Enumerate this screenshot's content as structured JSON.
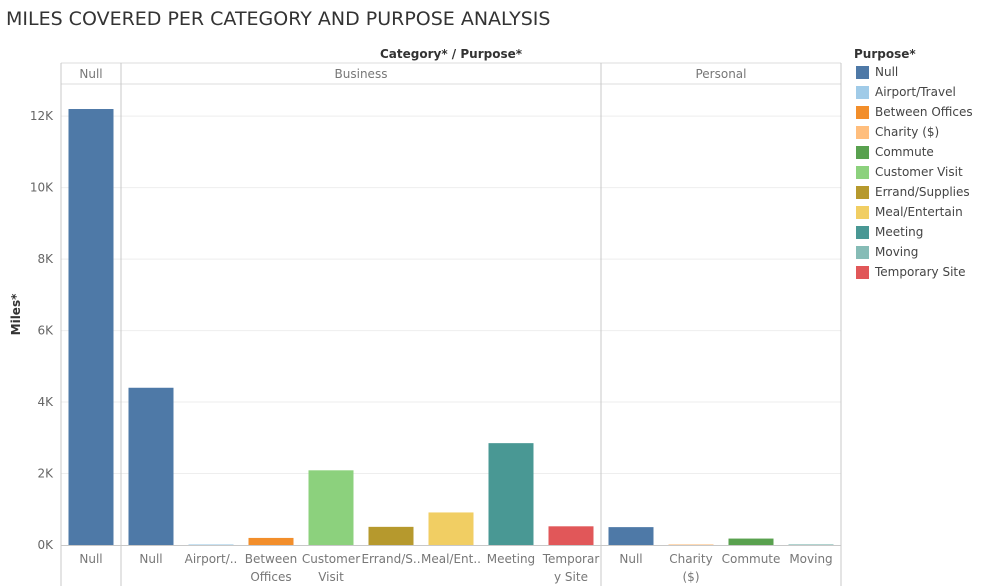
{
  "title": "MILES COVERED PER CATEGORY AND PURPOSE ANALYSIS",
  "legend": {
    "title": "Purpose*",
    "items": [
      {
        "label": "Null",
        "color": "#4e79a7"
      },
      {
        "label": "Airport/Travel",
        "color": "#a0cbe8"
      },
      {
        "label": "Between Offices",
        "color": "#f28e2b"
      },
      {
        "label": "Charity ($)",
        "color": "#ffbe7d"
      },
      {
        "label": "Commute",
        "color": "#59a14f"
      },
      {
        "label": "Customer Visit",
        "color": "#8cd17d"
      },
      {
        "label": "Errand/Supplies",
        "color": "#b6992d"
      },
      {
        "label": "Meal/Entertain",
        "color": "#f1ce63"
      },
      {
        "label": "Meeting",
        "color": "#499894"
      },
      {
        "label": "Moving",
        "color": "#86bcb6"
      },
      {
        "label": "Temporary Site",
        "color": "#e15759"
      }
    ]
  },
  "chart_data": {
    "type": "bar",
    "column_header": "Category* / Purpose*",
    "ylabel": "Miles*",
    "ylim": [
      0,
      12900
    ],
    "yticks": [
      0,
      2000,
      4000,
      6000,
      8000,
      10000,
      12000
    ],
    "ytick_labels": [
      "0K",
      "2K",
      "4K",
      "6K",
      "8K",
      "10K",
      "12K"
    ],
    "grid": true,
    "legend_position": "right",
    "panels": [
      {
        "category": "Null",
        "bars": [
          {
            "purpose": "Null",
            "label_lines": [
              "Null"
            ],
            "value": 12200,
            "color": "#4e79a7"
          }
        ]
      },
      {
        "category": "Business",
        "bars": [
          {
            "purpose": "Null",
            "label_lines": [
              "Null"
            ],
            "value": 4400,
            "color": "#4e79a7"
          },
          {
            "purpose": "Airport/Travel",
            "label_lines": [
              "Airport/.."
            ],
            "value": 16,
            "color": "#a0cbe8"
          },
          {
            "purpose": "Between Offices",
            "label_lines": [
              "Between",
              "Offices"
            ],
            "value": 198,
            "color": "#f28e2b"
          },
          {
            "purpose": "Customer Visit",
            "label_lines": [
              "Customer",
              "Visit"
            ],
            "value": 2090,
            "color": "#8cd17d"
          },
          {
            "purpose": "Errand/Supplies",
            "label_lines": [
              "Errand/S.."
            ],
            "value": 508,
            "color": "#b6992d"
          },
          {
            "purpose": "Meal/Entertain",
            "label_lines": [
              "Meal/Ent.."
            ],
            "value": 911,
            "color": "#f1ce63"
          },
          {
            "purpose": "Meeting",
            "label_lines": [
              "Meeting"
            ],
            "value": 2850,
            "color": "#499894"
          },
          {
            "purpose": "Temporary Site",
            "label_lines": [
              "Temporar",
              "y Site"
            ],
            "value": 523,
            "color": "#e15759"
          }
        ]
      },
      {
        "category": "Personal",
        "bars": [
          {
            "purpose": "Null",
            "label_lines": [
              "Null"
            ],
            "value": 500,
            "color": "#4e79a7"
          },
          {
            "purpose": "Charity ($)",
            "label_lines": [
              "Charity",
              "($)"
            ],
            "value": 16,
            "color": "#ffbe7d"
          },
          {
            "purpose": "Commute",
            "label_lines": [
              "Commute"
            ],
            "value": 180,
            "color": "#59a14f"
          },
          {
            "purpose": "Moving",
            "label_lines": [
              "Moving"
            ],
            "value": 18,
            "color": "#86bcb6"
          }
        ]
      }
    ]
  }
}
